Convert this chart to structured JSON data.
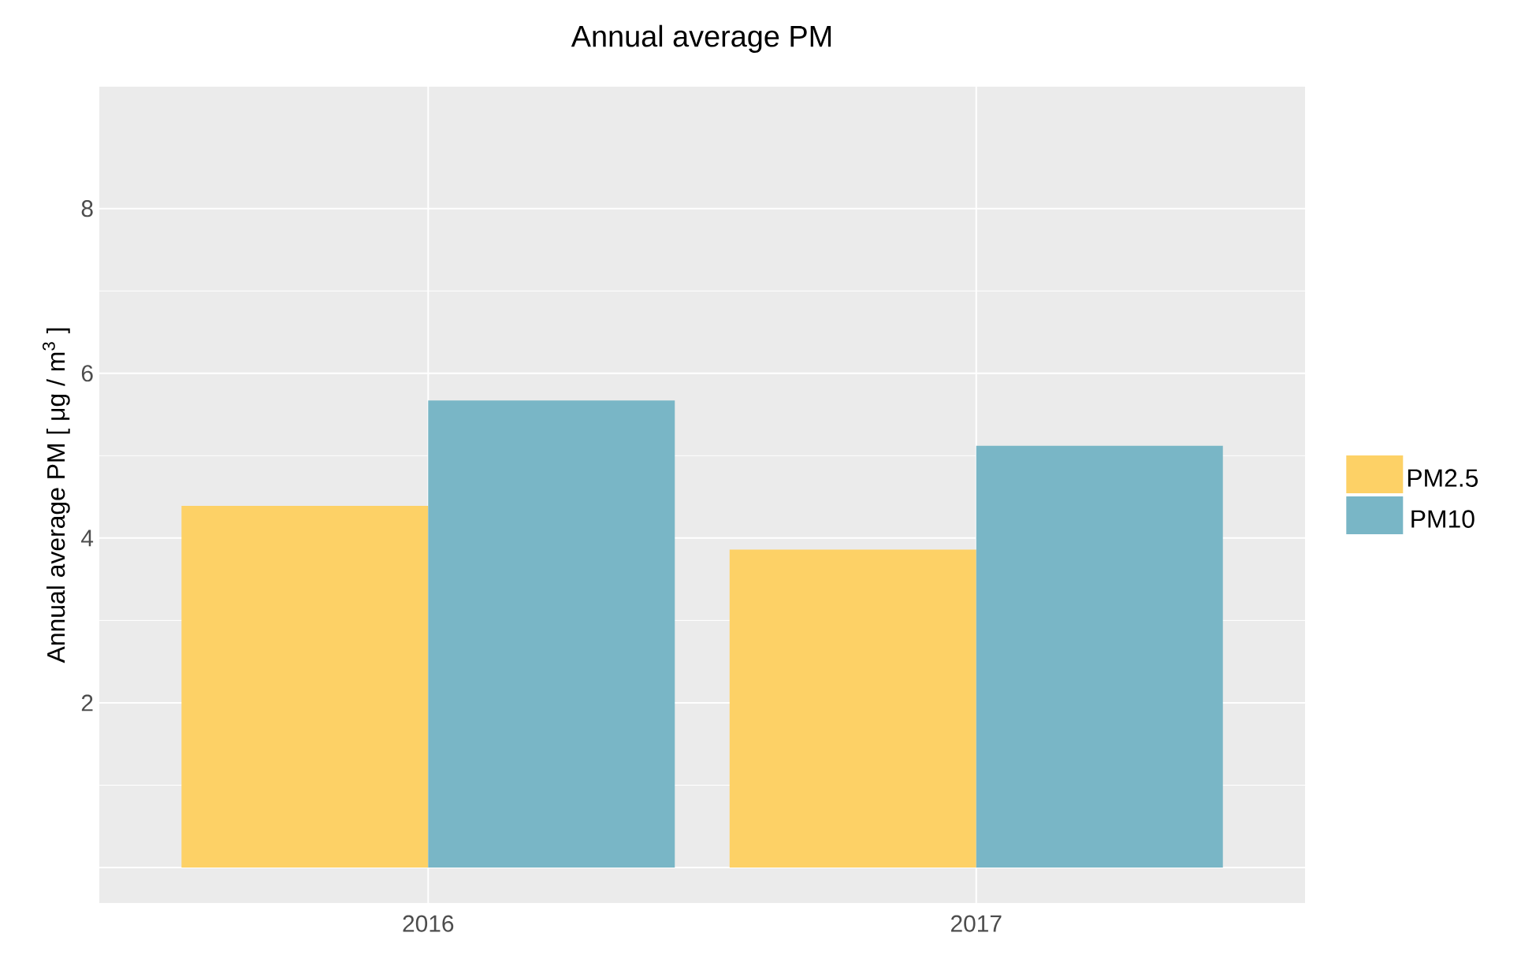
{
  "chart_data": {
    "type": "bar",
    "title": "Annual average PM",
    "ylabel": "Annual average PM [ μg / m$^{3}$ ]",
    "categories": [
      "2016",
      "2017"
    ],
    "series": [
      {
        "name": "PM2.5",
        "color": "#fdd166",
        "values": [
          4.39,
          3.86
        ]
      },
      {
        "name": "PM10",
        "color": "#79b6c6",
        "values": [
          5.67,
          5.12
        ]
      }
    ],
    "ylim": [
      -0.43,
      9.48
    ],
    "yticks": [
      {
        "value": 0,
        "label": null
      },
      2,
      4,
      6,
      8
    ],
    "grid": true,
    "legend": "right"
  }
}
